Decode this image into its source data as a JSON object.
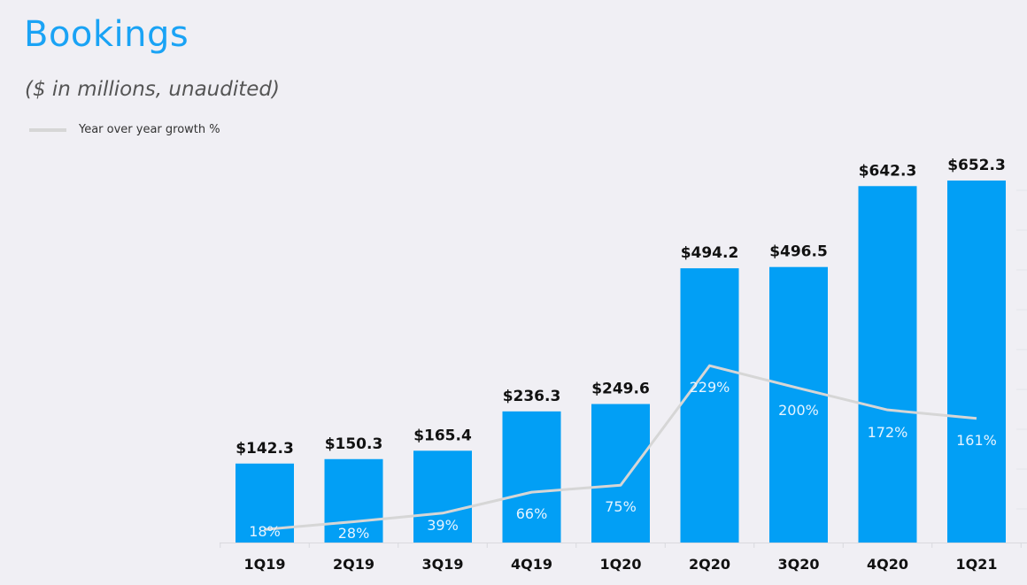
{
  "chart_data": {
    "type": "bar",
    "title": "Bookings",
    "subtitle": "($ in millions,  unaudited)",
    "xlabel": "",
    "ylabel": "",
    "categories": [
      "1Q19",
      "2Q19",
      "3Q19",
      "4Q19",
      "1Q20",
      "2Q20",
      "3Q20",
      "4Q20",
      "1Q21"
    ],
    "series": [
      {
        "name": "Bookings",
        "type": "bar",
        "values": [
          142.3,
          150.3,
          165.4,
          236.3,
          249.6,
          494.2,
          496.5,
          642.3,
          652.3
        ],
        "labels": [
          "$142.3",
          "$150.3",
          "$165.4",
          "$236.3",
          "$249.6",
          "$494.2",
          "$496.5",
          "$642.3",
          "$652.3"
        ],
        "color": "#029ff5"
      },
      {
        "name": "Year over year growth %",
        "type": "line",
        "values": [
          18,
          28,
          39,
          66,
          75,
          229,
          200,
          172,
          161
        ],
        "labels": [
          "18%",
          "28%",
          "39%",
          "66%",
          "75%",
          "229%",
          "200%",
          "172%",
          "161%"
        ],
        "color": "#d6d6d6"
      }
    ],
    "legend": {
      "position": "top-left",
      "entries": [
        "Year over year growth %"
      ]
    },
    "grid": false
  }
}
